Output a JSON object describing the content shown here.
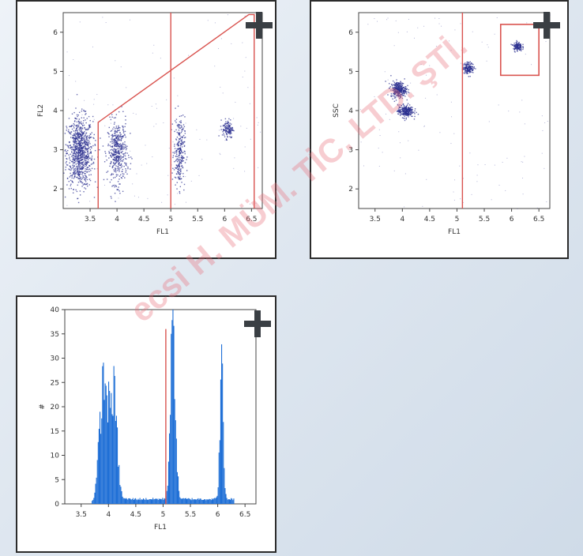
{
  "chart_data": [
    {
      "id": "fl1-vs-fl2",
      "type": "scatter",
      "xlabel": "FL1",
      "ylabel": "FL2",
      "xlim": [
        3.0,
        6.7
      ],
      "ylim": [
        1.5,
        6.5
      ],
      "xticks": [
        "3.5",
        "4",
        "4.5",
        "5",
        "5.5",
        "6",
        "6.5"
      ],
      "yticks": [
        "2",
        "3",
        "4",
        "5",
        "6"
      ],
      "grid": false,
      "point_color": "#2a2d8f",
      "gate_color": "#d9534f",
      "clusters": [
        {
          "x": 3.3,
          "y": 2.95,
          "sx": 0.12,
          "sy": 0.45,
          "n": 900
        },
        {
          "x": 4.0,
          "y": 2.95,
          "sx": 0.09,
          "sy": 0.4,
          "n": 450
        },
        {
          "x": 5.15,
          "y": 2.95,
          "sx": 0.05,
          "sy": 0.45,
          "n": 260
        },
        {
          "x": 6.05,
          "y": 3.55,
          "sx": 0.05,
          "sy": 0.12,
          "n": 130
        }
      ],
      "gate_polygon": [
        [
          3.65,
          1.5
        ],
        [
          3.65,
          3.7
        ],
        [
          6.45,
          6.45
        ],
        [
          6.55,
          6.45
        ],
        [
          6.55,
          1.5
        ]
      ],
      "gate_vertical_lines": [
        5.0
      ]
    },
    {
      "id": "fl1-vs-ssc",
      "type": "scatter",
      "xlabel": "FL1",
      "ylabel": "SSC",
      "xlim": [
        3.2,
        6.7
      ],
      "ylim": [
        1.5,
        6.5
      ],
      "xticks": [
        "3.5",
        "4",
        "4.5",
        "5",
        "5.5",
        "6",
        "6.5"
      ],
      "yticks": [
        "2",
        "3",
        "4",
        "5",
        "6"
      ],
      "grid": false,
      "point_color": "#2a2d8f",
      "gate_color": "#d9534f",
      "clusters": [
        {
          "x": 3.92,
          "y": 4.55,
          "sx": 0.07,
          "sy": 0.1,
          "n": 320
        },
        {
          "x": 4.05,
          "y": 4.0,
          "sx": 0.07,
          "sy": 0.08,
          "n": 260
        },
        {
          "x": 5.2,
          "y": 5.1,
          "sx": 0.05,
          "sy": 0.07,
          "n": 170
        },
        {
          "x": 6.1,
          "y": 5.65,
          "sx": 0.04,
          "sy": 0.06,
          "n": 130
        }
      ],
      "gate_vertical_lines": [
        5.1
      ],
      "gate_rect": {
        "x0": 5.8,
        "x1": 6.5,
        "y0": 4.9,
        "y1": 6.2
      }
    },
    {
      "id": "fl1-histogram",
      "type": "bar",
      "xlabel": "FL1",
      "ylabel": "#",
      "xlim": [
        3.2,
        6.7
      ],
      "ylim": [
        0,
        40
      ],
      "xticks": [
        "3.5",
        "4",
        "4.5",
        "5",
        "5.5",
        "6",
        "6.5"
      ],
      "yticks": [
        "0",
        "5",
        "10",
        "15",
        "20",
        "25",
        "30",
        "35",
        "40"
      ],
      "grid": false,
      "bar_color": "#1f6fd6",
      "gate_color": "#d9534f",
      "peaks": [
        {
          "x": 3.92,
          "width": 0.08,
          "height": 24
        },
        {
          "x": 4.1,
          "width": 0.06,
          "height": 20
        },
        {
          "x": 5.18,
          "width": 0.045,
          "height": 35
        },
        {
          "x": 6.07,
          "width": 0.03,
          "height": 27
        }
      ],
      "gate_vertical_lines": [
        5.05
      ]
    }
  ],
  "icons": {
    "expand": "plus-icon"
  },
  "watermark": {
    "text": "ecsi H. MÜM. TİC. LTD. ŞTİ.",
    "color": "#e8707a"
  }
}
